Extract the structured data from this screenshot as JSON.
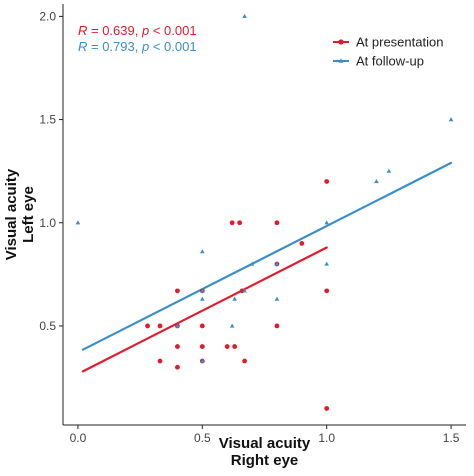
{
  "chart_data": {
    "type": "scatter",
    "title": "",
    "xlabel": [
      "Visual acuity",
      "Right eye"
    ],
    "ylabel": [
      "Visual acuity",
      "Left eye"
    ],
    "xlim": [
      -0.06,
      1.56
    ],
    "ylim": [
      0.02,
      2.06
    ],
    "x_ticks": [
      0.0,
      0.5,
      1.0,
      1.5
    ],
    "x_tick_labels": [
      "0.0",
      "0.5",
      "1.0",
      "1.5"
    ],
    "y_ticks": [
      0.5,
      1.0,
      1.5,
      2.0
    ],
    "y_tick_labels": [
      "0.5",
      "1.0",
      "1.5",
      "2.0"
    ],
    "grid": false,
    "legend_position": "top-right",
    "annotations": [
      {
        "series": "At presentation",
        "parts": [
          {
            "text": "R",
            "italic": true
          },
          {
            "text": " = 0.639, ",
            "italic": false
          },
          {
            "text": "p",
            "italic": true
          },
          {
            "text": " < 0.001",
            "italic": false
          }
        ]
      },
      {
        "series": "At follow-up",
        "parts": [
          {
            "text": "R",
            "italic": true
          },
          {
            "text": " = 0.793, ",
            "italic": false
          },
          {
            "text": "p",
            "italic": true
          },
          {
            "text": " < 0.001",
            "italic": false
          }
        ]
      }
    ],
    "series": [
      {
        "name": "At presentation",
        "color": "#e41a2c",
        "marker": "circle",
        "fit_line": {
          "x": [
            0.02,
            1.0
          ],
          "y": [
            0.28,
            0.88
          ]
        },
        "points": [
          [
            0.28,
            0.5
          ],
          [
            0.33,
            0.5
          ],
          [
            0.33,
            0.33
          ],
          [
            0.4,
            0.67
          ],
          [
            0.4,
            0.5
          ],
          [
            0.4,
            0.4
          ],
          [
            0.4,
            0.3
          ],
          [
            0.5,
            0.67
          ],
          [
            0.5,
            0.5
          ],
          [
            0.5,
            0.4
          ],
          [
            0.5,
            0.33
          ],
          [
            0.6,
            0.4
          ],
          [
            0.62,
            1.0
          ],
          [
            0.63,
            0.4
          ],
          [
            0.65,
            1.0
          ],
          [
            0.66,
            0.67
          ],
          [
            0.67,
            0.33
          ],
          [
            0.8,
            1.0
          ],
          [
            0.8,
            0.8
          ],
          [
            0.8,
            0.5
          ],
          [
            0.9,
            0.9
          ],
          [
            1.0,
            1.2
          ],
          [
            1.0,
            0.67
          ],
          [
            1.0,
            0.1
          ]
        ]
      },
      {
        "name": "At follow-up",
        "color": "#3a8fcb",
        "marker": "triangle",
        "fit_line": {
          "x": [
            0.02,
            1.5
          ],
          "y": [
            0.385,
            1.29
          ]
        },
        "points": [
          [
            0.0,
            1.0
          ],
          [
            0.4,
            0.5
          ],
          [
            0.5,
            0.86
          ],
          [
            0.5,
            0.67
          ],
          [
            0.5,
            0.63
          ],
          [
            0.5,
            0.33
          ],
          [
            0.62,
            0.5
          ],
          [
            0.63,
            0.63
          ],
          [
            0.67,
            2.0
          ],
          [
            0.67,
            0.67
          ],
          [
            0.7,
            0.8
          ],
          [
            0.8,
            0.63
          ],
          [
            0.8,
            0.8
          ],
          [
            1.0,
            1.0
          ],
          [
            1.0,
            0.8
          ],
          [
            1.2,
            1.2
          ],
          [
            1.25,
            1.25
          ],
          [
            1.5,
            1.5
          ]
        ]
      }
    ]
  }
}
